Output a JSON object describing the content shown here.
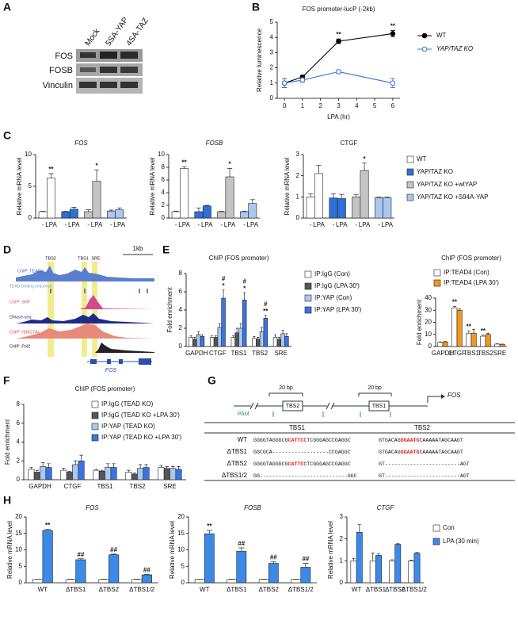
{
  "panels": [
    "A",
    "B",
    "C",
    "D",
    "E",
    "F",
    "G",
    "H"
  ],
  "blot": {
    "lanes": [
      "Mock",
      "5SA-YAP",
      "4SA-TAZ"
    ],
    "rows": [
      "FOS",
      "FOSB",
      "Vinculin"
    ]
  },
  "tracks": {
    "scale": "1kb",
    "sites": [
      "TBS2",
      "TBS1",
      "SRE"
    ],
    "labels": [
      "ChIP: TEAD4",
      "TEAD binding sequence",
      "ChIP: SRF",
      "DNase-seq",
      "ChIP: H3K27Ac",
      "ChIP: Pol2"
    ],
    "gene": "FOS"
  },
  "construct": {
    "spacers": [
      "20 bp",
      "20 bp"
    ],
    "sites": [
      "TBS2",
      "TBS1"
    ],
    "gene": "FOS",
    "pam": "PAM"
  },
  "alignment": {
    "columns": [
      "TBS1",
      "TBS2"
    ],
    "rows": [
      {
        "label": "WT",
        "tbs1": [
          "GGGGTAGGGCG",
          "CATTCC",
          "TCGGGAGCCGAGGC"
        ],
        "tbs2": [
          "GTGACAG",
          "GGAATG",
          "CAAAAATAGCAAGT"
        ]
      },
      {
        "label": "ΔTBS1",
        "tbs1": [
          "GGCGCA------------------CCGAGGC"
        ],
        "tbs2": [
          "GTGACAG",
          "GGAATG",
          "CAAAAATAGCAAGT"
        ]
      },
      {
        "label": "ΔTBS2",
        "tbs1": [
          "GGGGTAGGGCG",
          "CATTCC",
          "TCGGGAGCCGAGGC"
        ],
        "tbs2": [
          "GT------------------------AGT"
        ]
      },
      {
        "label": "ΔTBS1/2",
        "tbs1": [
          "GG----------------------------GGC"
        ],
        "tbs2": [
          "GT------------------------AGT"
        ]
      }
    ]
  },
  "chart_data": [
    {
      "type": "line",
      "title": "FOS promoter-lucP (-2kb)",
      "xlabel": "LPA (hr)",
      "ylabel": "Relative luminescence",
      "x": [
        0,
        1,
        3,
        6
      ],
      "xlim": [
        -0.4,
        6.4
      ],
      "xticks": [
        0,
        1,
        2,
        3,
        4,
        5,
        6
      ],
      "ylim": [
        0,
        5
      ],
      "yticks": [
        0,
        1,
        2,
        3,
        4,
        5
      ],
      "legend": "right",
      "series": [
        {
          "name": "WT",
          "color": "#000000",
          "marker": "filled",
          "values": [
            1,
            1.4,
            3.75,
            4.25
          ],
          "errors": [
            0.3,
            0.1,
            0.15,
            0.2
          ],
          "annotations": [
            null,
            null,
            "**",
            "**"
          ]
        },
        {
          "name": "YAP/TAZ KO",
          "color": "#3b6fd6",
          "marker": "open",
          "values": [
            1,
            1.2,
            1.75,
            1.0
          ],
          "errors": [
            0.3,
            0.15,
            0.12,
            0.3
          ]
        }
      ]
    },
    {
      "type": "bar",
      "grouping": "series",
      "title": "FOS",
      "ylabel": "Relative mRNA level",
      "categories": [
        "-",
        "LPA"
      ],
      "ylim": [
        0,
        10
      ],
      "yticks": [
        0,
        5,
        10
      ],
      "series": [
        {
          "color": "#ffffff",
          "values": [
            1,
            6.3
          ],
          "errors": [
            0.05,
            0.7
          ],
          "annotations": [
            null,
            "**"
          ]
        },
        {
          "color": "#2f6fd6",
          "values": [
            1,
            1.4
          ],
          "errors": [
            0.05,
            0.3
          ]
        },
        {
          "color": "#c4c4c4",
          "values": [
            1,
            5.8
          ],
          "errors": [
            0.3,
            1.8
          ],
          "annotations": [
            null,
            "*"
          ]
        },
        {
          "color": "#a9c9ef",
          "values": [
            1.1,
            1.3
          ],
          "errors": [
            0.15,
            0.3
          ]
        }
      ]
    },
    {
      "type": "bar",
      "grouping": "series",
      "title": "FOSB",
      "ylabel": "Relative mRNA level",
      "categories": [
        "-",
        "LPA"
      ],
      "ylim": [
        0,
        10
      ],
      "yticks": [
        0,
        2,
        4,
        6,
        8,
        10
      ],
      "series": [
        {
          "color": "#ffffff",
          "values": [
            1,
            7.8
          ],
          "errors": [
            0.1,
            0.3
          ],
          "annotations": [
            null,
            "**"
          ]
        },
        {
          "color": "#2f6fd6",
          "values": [
            1,
            1.9
          ],
          "errors": [
            0.6,
            0.1
          ]
        },
        {
          "color": "#c4c4c4",
          "values": [
            1,
            6.5
          ],
          "errors": [
            0.05,
            1.3
          ],
          "annotations": [
            null,
            "*"
          ]
        },
        {
          "color": "#a9c9ef",
          "values": [
            1,
            2.3
          ],
          "errors": [
            0.1,
            0.6
          ]
        }
      ]
    },
    {
      "type": "bar",
      "grouping": "series",
      "title": "CTGF",
      "ylabel": "Relative mRNA level",
      "categories": [
        "-",
        "LPA"
      ],
      "ylim": [
        0,
        3
      ],
      "yticks": [
        0,
        1,
        2,
        3
      ],
      "series": [
        {
          "name": "WT",
          "color": "#ffffff",
          "values": [
            1,
            2.1
          ],
          "errors": [
            0.15,
            0.4
          ]
        },
        {
          "name": "YAP/TAZ KO",
          "color": "#2f6fd6",
          "values": [
            0.95,
            0.92
          ],
          "errors": [
            0.2,
            0.2
          ]
        },
        {
          "name": "YAP/TAZ KO +wtYAP",
          "color": "#c4c4c4",
          "values": [
            1,
            2.25
          ],
          "errors": [
            0.1,
            0.35
          ],
          "annotations": [
            null,
            "*"
          ]
        },
        {
          "name": "YAP/TAZ KO +S94A-YAP",
          "color": "#a9c9ef",
          "values": [
            0.97,
            0.97
          ],
          "errors": [
            0.03,
            0.03
          ]
        }
      ]
    },
    {
      "type": "bar",
      "title": "ChIP (FOS promoter)",
      "ylabel": "Fold enrichment",
      "categories": [
        "GAPDH",
        "CTGF",
        "TBS1",
        "TBS2",
        "SRE"
      ],
      "ylim": [
        0,
        8
      ],
      "yticks": [
        0,
        2,
        4,
        6,
        8
      ],
      "series": [
        {
          "name": "IP:IgG (Con)",
          "color": "#ffffff",
          "values": [
            1,
            1,
            1,
            0.9,
            1
          ],
          "errors": [
            0.2,
            0.2,
            0.2,
            0.2,
            0.3
          ]
        },
        {
          "name": "IP:IgG (LPA 30')",
          "color": "#555555",
          "values": [
            0.8,
            1,
            1.5,
            0.8,
            0.8
          ],
          "errors": [
            0.2,
            0.2,
            0.5,
            0.2,
            0.2
          ]
        },
        {
          "name": "IP:YAP (Con)",
          "color": "#a9c9ef",
          "values": [
            1.3,
            2.1,
            2,
            1.6,
            1.4
          ],
          "errors": [
            0.3,
            0.4,
            0.5,
            0.5,
            0.4
          ]
        },
        {
          "name": "IP:YAP (LPA 30')",
          "color": "#3b74e0",
          "values": [
            1.1,
            5.3,
            5.1,
            3.1,
            1.1
          ],
          "errors": [
            0.2,
            0.9,
            0.8,
            0.3,
            0.3
          ],
          "annotations": [
            null,
            [
              "#",
              "*"
            ],
            [
              "#",
              "*"
            ],
            [
              "#",
              "**"
            ],
            null
          ]
        }
      ]
    },
    {
      "type": "bar",
      "title": "ChIP (FOS promoter)",
      "ylabel": "Fold enrichment",
      "categories": [
        "GAPDH",
        "CTGF",
        "TBS1",
        "TBS2",
        "SRE"
      ],
      "ylim": [
        0,
        40
      ],
      "yticks": [
        0,
        10,
        20,
        30,
        40
      ],
      "series": [
        {
          "name": "IP:TEAD4 (Con)",
          "color": "#ffffff",
          "values": [
            3.5,
            32,
            11,
            8.5,
            2
          ],
          "errors": [
            0.3,
            1.2,
            2,
            0.8,
            0.2
          ],
          "annotations": [
            null,
            "**",
            "**",
            "**",
            null
          ]
        },
        {
          "name": "IP:TEAD4 (LPA 30')",
          "color": "#f5961e",
          "values": [
            3.8,
            30,
            11,
            10,
            1.8
          ],
          "errors": [
            0.3,
            1,
            3,
            1,
            0.2
          ]
        }
      ]
    },
    {
      "type": "bar",
      "title": "ChIP (FOS promoter)",
      "ylabel": "Fold enrichment",
      "categories": [
        "GAPDH",
        "CTGF",
        "TBS1",
        "TBS2",
        "SRE"
      ],
      "ylim": [
        0,
        8
      ],
      "yticks": [
        0,
        2,
        4,
        6,
        8
      ],
      "series": [
        {
          "name": "IP:IgG (TEAD KO)",
          "color": "#ffffff",
          "values": [
            1.1,
            1,
            1,
            0.8,
            1.3
          ],
          "errors": [
            0.2,
            0.2,
            0.1,
            0.2,
            0.2
          ]
        },
        {
          "name": "IP:IgG (TEAD KO +LPA 30')",
          "color": "#555555",
          "values": [
            0.8,
            0.8,
            0.9,
            0.6,
            1.2
          ],
          "errors": [
            0.2,
            0.1,
            0.1,
            0.1,
            0.2
          ]
        },
        {
          "name": "IP:YAP (TEAD KO)",
          "color": "#a9c9ef",
          "values": [
            1.4,
            1.6,
            1.3,
            1.2,
            1.2
          ],
          "errors": [
            0.4,
            0.4,
            0.4,
            0.4,
            0.2
          ]
        },
        {
          "name": "IP:YAP (TEAD KO +LPA 30')",
          "color": "#3b74e0",
          "values": [
            1.3,
            2,
            1.3,
            1.3,
            1.1
          ],
          "errors": [
            0.4,
            0.6,
            0.4,
            0.3,
            0.3
          ]
        }
      ]
    },
    {
      "type": "bar",
      "title": "FOS",
      "ylabel": "Relative mRNA level",
      "categories": [
        "WT",
        "ΔTBS1",
        "ΔTBS2",
        "ΔTBS1/2"
      ],
      "ylim": [
        0,
        20
      ],
      "yticks": [
        0,
        5,
        10,
        15,
        20
      ],
      "series": [
        {
          "color": "#ffffff",
          "values": [
            1,
            1,
            1,
            1
          ],
          "errors": [
            0.05,
            0.1,
            0.1,
            0.1
          ]
        },
        {
          "color": "#3b8ae6",
          "values": [
            15.9,
            7,
            8.5,
            2.4
          ],
          "errors": [
            0.3,
            0.3,
            0.2,
            0.15
          ],
          "annotations": [
            "**",
            "##",
            "##",
            "##"
          ]
        }
      ]
    },
    {
      "type": "bar",
      "title": "FOSB",
      "ylabel": "Relative mRNA level",
      "categories": [
        "WT",
        "ΔTBS1",
        "ΔTBS2",
        "ΔTBS1/2"
      ],
      "ylim": [
        0,
        20
      ],
      "yticks": [
        0,
        5,
        10,
        15,
        20
      ],
      "series": [
        {
          "color": "#ffffff",
          "values": [
            1,
            1,
            1,
            1
          ],
          "errors": [
            0.05,
            0.1,
            0.1,
            0.1
          ]
        },
        {
          "color": "#3b8ae6",
          "values": [
            14.9,
            9.6,
            5.9,
            4.7
          ],
          "errors": [
            1,
            1,
            0.5,
            1.2
          ],
          "annotations": [
            "**",
            "##",
            "##",
            "##"
          ]
        }
      ]
    },
    {
      "type": "bar",
      "title": "CTGF",
      "ylabel": "Relative mRNA level",
      "categories": [
        "WT",
        "ΔTBS1",
        "ΔTBS2",
        "ΔTBS1/2"
      ],
      "ylim": [
        0,
        3
      ],
      "yticks": [
        0,
        1,
        2,
        3
      ],
      "series": [
        {
          "name": "Con",
          "color": "#ffffff",
          "values": [
            1,
            1,
            1,
            1
          ],
          "errors": [
            0.1,
            0.35,
            0.05,
            0.03
          ]
        },
        {
          "name": "LPA (30 min)",
          "color": "#3b8ae6",
          "values": [
            2.3,
            1.25,
            1.75,
            1.35
          ],
          "errors": [
            0.35,
            0.08,
            0.03,
            0.03
          ]
        }
      ]
    }
  ]
}
